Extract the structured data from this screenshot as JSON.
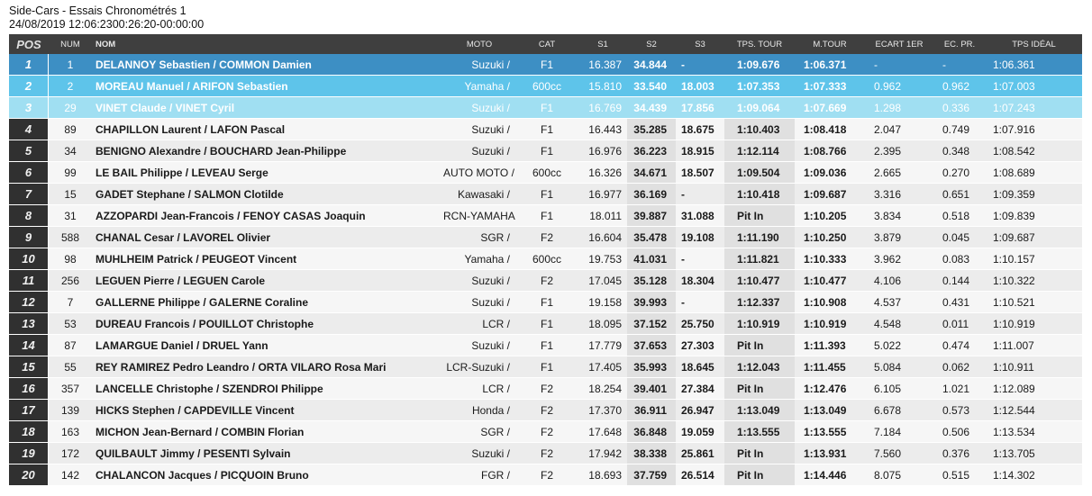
{
  "header": {
    "title": "Side-Cars - Essais Chronométrés 1",
    "datetime": "24/08/2019 12:06:2300:26:20-00:00:00"
  },
  "columns": {
    "pos": "POS",
    "num": "NUM",
    "nom": "NOM",
    "moto": "MOTO",
    "cat": "CAT",
    "s1": "S1",
    "s2": "S2",
    "s3": "S3",
    "tps": "TPS. TOUR",
    "mtour": "M.TOUR",
    "ecart": "ECART 1ER",
    "ecpr": "EC. PR.",
    "ideal": "TPS IDÉAL"
  },
  "rows": [
    {
      "pos": "1",
      "num": "1",
      "nom": "DELANNOY Sebastien / COMMON Damien",
      "moto": "Suzuki /",
      "cat": "F1",
      "s1": "16.387",
      "s2": "34.844",
      "s3": "-",
      "tps": "1:09.676",
      "mtour": "1:06.371",
      "ecart": "-",
      "ecpr": "-",
      "ideal": "1:06.361"
    },
    {
      "pos": "2",
      "num": "2",
      "nom": "MOREAU Manuel / ARIFON Sebastien",
      "moto": "Yamaha /",
      "cat": "600cc",
      "s1": "15.810",
      "s2": "33.540",
      "s3": "18.003",
      "tps": "1:07.353",
      "mtour": "1:07.333",
      "ecart": "0.962",
      "ecpr": "0.962",
      "ideal": "1:07.003"
    },
    {
      "pos": "3",
      "num": "29",
      "nom": "VINET Claude / VINET Cyril",
      "moto": "Suzuki /",
      "cat": "F1",
      "s1": "16.769",
      "s2": "34.439",
      "s3": "17.856",
      "tps": "1:09.064",
      "mtour": "1:07.669",
      "ecart": "1.298",
      "ecpr": "0.336",
      "ideal": "1:07.243"
    },
    {
      "pos": "4",
      "num": "89",
      "nom": "CHAPILLON Laurent / LAFON Pascal",
      "moto": "Suzuki /",
      "cat": "F1",
      "s1": "16.443",
      "s2": "35.285",
      "s3": "18.675",
      "tps": "1:10.403",
      "mtour": "1:08.418",
      "ecart": "2.047",
      "ecpr": "0.749",
      "ideal": "1:07.916"
    },
    {
      "pos": "5",
      "num": "34",
      "nom": "BENIGNO Alexandre / BOUCHARD Jean-Philippe",
      "moto": "Suzuki /",
      "cat": "F1",
      "s1": "16.976",
      "s2": "36.223",
      "s3": "18.915",
      "tps": "1:12.114",
      "mtour": "1:08.766",
      "ecart": "2.395",
      "ecpr": "0.348",
      "ideal": "1:08.542"
    },
    {
      "pos": "6",
      "num": "99",
      "nom": "LE BAIL Philippe / LEVEAU Serge",
      "moto": "AUTO MOTO /",
      "cat": "600cc",
      "s1": "16.326",
      "s2": "34.671",
      "s3": "18.507",
      "tps": "1:09.504",
      "mtour": "1:09.036",
      "ecart": "2.665",
      "ecpr": "0.270",
      "ideal": "1:08.689"
    },
    {
      "pos": "7",
      "num": "15",
      "nom": "GADET Stephane / SALMON Clotilde",
      "moto": "Kawasaki /",
      "cat": "F1",
      "s1": "16.977",
      "s2": "36.169",
      "s3": "-",
      "tps": "1:10.418",
      "mtour": "1:09.687",
      "ecart": "3.316",
      "ecpr": "0.651",
      "ideal": "1:09.359"
    },
    {
      "pos": "8",
      "num": "31",
      "nom": "AZZOPARDI Jean-Francois / FENOY CASAS Joaquin",
      "moto": "RCN-YAMAHA /",
      "cat": "F1",
      "s1": "18.011",
      "s2": "39.887",
      "s3": "31.088",
      "tps": "Pit In",
      "mtour": "1:10.205",
      "ecart": "3.834",
      "ecpr": "0.518",
      "ideal": "1:09.839"
    },
    {
      "pos": "9",
      "num": "588",
      "nom": "CHANAL Cesar / LAVOREL Olivier",
      "moto": "SGR /",
      "cat": "F2",
      "s1": "16.604",
      "s2": "35.478",
      "s3": "19.108",
      "tps": "1:11.190",
      "mtour": "1:10.250",
      "ecart": "3.879",
      "ecpr": "0.045",
      "ideal": "1:09.687"
    },
    {
      "pos": "10",
      "num": "98",
      "nom": "MUHLHEIM Patrick / PEUGEOT Vincent",
      "moto": "Yamaha /",
      "cat": "600cc",
      "s1": "19.753",
      "s2": "41.031",
      "s3": "-",
      "tps": "1:11.821",
      "mtour": "1:10.333",
      "ecart": "3.962",
      "ecpr": "0.083",
      "ideal": "1:10.157"
    },
    {
      "pos": "11",
      "num": "256",
      "nom": "LEGUEN Pierre / LEGUEN Carole",
      "moto": "Suzuki /",
      "cat": "F2",
      "s1": "17.045",
      "s2": "35.128",
      "s3": "18.304",
      "tps": "1:10.477",
      "mtour": "1:10.477",
      "ecart": "4.106",
      "ecpr": "0.144",
      "ideal": "1:10.322"
    },
    {
      "pos": "12",
      "num": "7",
      "nom": "GALLERNE Philippe / GALERNE Coraline",
      "moto": "Suzuki /",
      "cat": "F1",
      "s1": "19.158",
      "s2": "39.993",
      "s3": "-",
      "tps": "1:12.337",
      "mtour": "1:10.908",
      "ecart": "4.537",
      "ecpr": "0.431",
      "ideal": "1:10.521"
    },
    {
      "pos": "13",
      "num": "53",
      "nom": "DUREAU Francois / POUILLOT Christophe",
      "moto": "LCR /",
      "cat": "F1",
      "s1": "18.095",
      "s2": "37.152",
      "s3": "25.750",
      "tps": "1:10.919",
      "mtour": "1:10.919",
      "ecart": "4.548",
      "ecpr": "0.011",
      "ideal": "1:10.919"
    },
    {
      "pos": "14",
      "num": "87",
      "nom": "LAMARGUE Daniel / DRUEL Yann",
      "moto": "Suzuki /",
      "cat": "F1",
      "s1": "17.779",
      "s2": "37.653",
      "s3": "27.303",
      "tps": "Pit In",
      "mtour": "1:11.393",
      "ecart": "5.022",
      "ecpr": "0.474",
      "ideal": "1:11.007"
    },
    {
      "pos": "15",
      "num": "55",
      "nom": "REY RAMIREZ Pedro Leandro / ORTA VILARO Rosa Mari",
      "moto": "LCR-Suzuki /",
      "cat": "F1",
      "s1": "17.405",
      "s2": "35.993",
      "s3": "18.645",
      "tps": "1:12.043",
      "mtour": "1:11.455",
      "ecart": "5.084",
      "ecpr": "0.062",
      "ideal": "1:10.911"
    },
    {
      "pos": "16",
      "num": "357",
      "nom": "LANCELLE Christophe / SZENDROI Philippe",
      "moto": "LCR /",
      "cat": "F2",
      "s1": "18.254",
      "s2": "39.401",
      "s3": "27.384",
      "tps": "Pit In",
      "mtour": "1:12.476",
      "ecart": "6.105",
      "ecpr": "1.021",
      "ideal": "1:12.089"
    },
    {
      "pos": "17",
      "num": "139",
      "nom": "HICKS Stephen / CAPDEVILLE Vincent",
      "moto": "Honda /",
      "cat": "F2",
      "s1": "17.370",
      "s2": "36.911",
      "s3": "26.947",
      "tps": "1:13.049",
      "mtour": "1:13.049",
      "ecart": "6.678",
      "ecpr": "0.573",
      "ideal": "1:12.544"
    },
    {
      "pos": "18",
      "num": "163",
      "nom": "MICHON Jean-Bernard / COMBIN Florian",
      "moto": "SGR /",
      "cat": "F2",
      "s1": "17.648",
      "s2": "36.848",
      "s3": "19.059",
      "tps": "1:13.555",
      "mtour": "1:13.555",
      "ecart": "7.184",
      "ecpr": "0.506",
      "ideal": "1:13.534"
    },
    {
      "pos": "19",
      "num": "172",
      "nom": "QUILBAULT Jimmy / PESENTI Sylvain",
      "moto": "Suzuki /",
      "cat": "F2",
      "s1": "17.942",
      "s2": "38.338",
      "s3": "25.861",
      "tps": "Pit In",
      "mtour": "1:13.931",
      "ecart": "7.560",
      "ecpr": "0.376",
      "ideal": "1:13.705"
    },
    {
      "pos": "20",
      "num": "142",
      "nom": "CHALANCON Jacques / PICQUOIN Bruno",
      "moto": "FGR /",
      "cat": "F2",
      "s1": "18.693",
      "s2": "37.759",
      "s3": "26.514",
      "tps": "Pit In",
      "mtour": "1:14.446",
      "ecart": "8.075",
      "ecpr": "0.515",
      "ideal": "1:14.302"
    }
  ]
}
